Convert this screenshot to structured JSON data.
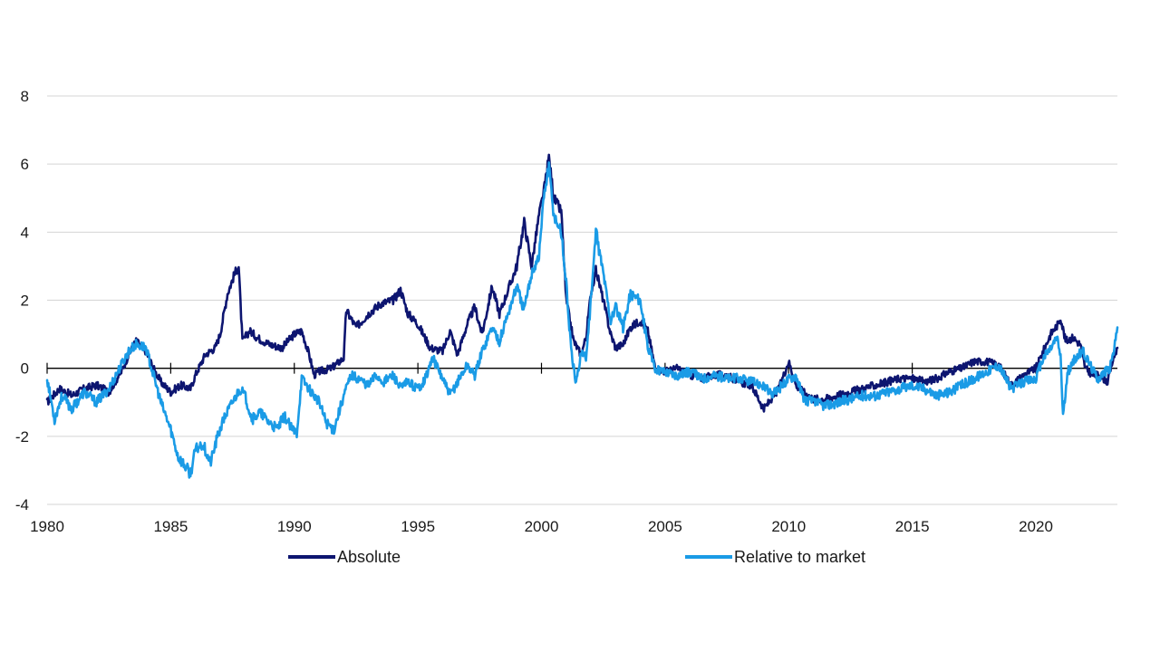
{
  "chart_data": {
    "type": "line",
    "title": "",
    "xlabel": "",
    "ylabel": "",
    "xlim": [
      1980,
      2023.3
    ],
    "ylim": [
      -4,
      8
    ],
    "x_ticks": [
      1980,
      1985,
      1990,
      1995,
      2000,
      2005,
      2010,
      2015,
      2020
    ],
    "x_tick_labels": [
      "1980",
      "1985",
      "1990",
      "1995",
      "2000",
      "2005",
      "2010",
      "2015",
      "2020"
    ],
    "y_ticks": [
      -4,
      -2,
      0,
      2,
      4,
      6,
      8
    ],
    "y_tick_labels": [
      "-4",
      "-2",
      "0",
      "2",
      "4",
      "6",
      "8"
    ],
    "grid": "horizontal",
    "legend": "bottom",
    "series": [
      {
        "name": "Absolute",
        "color": "#0d1570",
        "x": [
          1980.0,
          1980.5,
          1981.0,
          1981.5,
          1982.0,
          1982.5,
          1983.0,
          1983.3,
          1983.6,
          1984.0,
          1984.3,
          1984.6,
          1985.0,
          1985.4,
          1985.8,
          1986.0,
          1986.4,
          1986.8,
          1987.0,
          1987.3,
          1987.6,
          1987.75,
          1987.9,
          1988.2,
          1988.5,
          1989.0,
          1989.5,
          1990.0,
          1990.3,
          1990.6,
          1990.8,
          1991.0,
          1991.5,
          1992.0,
          1992.1,
          1992.5,
          1993.0,
          1993.5,
          1994.0,
          1994.3,
          1994.6,
          1995.0,
          1995.5,
          1996.0,
          1996.3,
          1996.6,
          1997.0,
          1997.3,
          1997.6,
          1998.0,
          1998.3,
          1998.6,
          1999.0,
          1999.3,
          1999.6,
          1999.9,
          2000.1,
          2000.3,
          2000.5,
          2000.8,
          2001.0,
          2001.3,
          2001.6,
          2001.8,
          2002.0,
          2002.2,
          2002.5,
          2002.8,
          2003.0,
          2003.3,
          2003.6,
          2004.0,
          2004.3,
          2004.6,
          2005.0,
          2005.5,
          2006.0,
          2006.5,
          2007.0,
          2007.5,
          2008.0,
          2008.5,
          2009.0,
          2009.3,
          2009.6,
          2010.0,
          2010.3,
          2010.6,
          2011.0,
          2011.5,
          2012.0,
          2012.5,
          2013.0,
          2013.5,
          2014.0,
          2014.5,
          2015.0,
          2015.5,
          2016.0,
          2016.5,
          2017.0,
          2017.5,
          2018.0,
          2018.5,
          2019.0,
          2019.5,
          2020.0,
          2020.3,
          2020.6,
          2020.9,
          2021.0,
          2021.2,
          2021.5,
          2021.8,
          2022.0,
          2022.3,
          2022.6,
          2022.9,
          2023.1,
          2023.3
        ],
        "y": [
          -1.0,
          -0.6,
          -0.8,
          -0.6,
          -0.5,
          -0.7,
          -0.1,
          0.4,
          0.8,
          0.5,
          0.0,
          -0.4,
          -0.7,
          -0.5,
          -0.6,
          -0.2,
          0.4,
          0.6,
          1.0,
          2.2,
          2.8,
          3.0,
          0.8,
          1.1,
          0.9,
          0.7,
          0.6,
          1.0,
          1.1,
          0.4,
          -0.2,
          -0.1,
          0.0,
          0.3,
          1.7,
          1.2,
          1.6,
          1.9,
          2.0,
          2.3,
          1.6,
          1.3,
          0.6,
          0.5,
          1.1,
          0.4,
          1.3,
          1.8,
          1.0,
          2.4,
          1.6,
          2.2,
          3.0,
          4.3,
          3.0,
          4.5,
          5.2,
          6.2,
          5.0,
          4.6,
          2.0,
          0.8,
          0.4,
          0.9,
          2.2,
          2.9,
          2.0,
          1.0,
          0.6,
          0.7,
          1.2,
          1.4,
          1.1,
          0.0,
          -0.1,
          0.0,
          -0.2,
          -0.3,
          -0.2,
          -0.2,
          -0.4,
          -0.5,
          -1.2,
          -0.9,
          -0.6,
          0.2,
          -0.5,
          -0.7,
          -0.9,
          -0.9,
          -0.8,
          -0.7,
          -0.6,
          -0.5,
          -0.4,
          -0.3,
          -0.3,
          -0.4,
          -0.3,
          -0.1,
          0.0,
          0.2,
          0.2,
          0.1,
          -0.5,
          -0.2,
          0.0,
          0.5,
          1.0,
          1.3,
          1.5,
          0.8,
          0.9,
          0.7,
          0.0,
          -0.2,
          -0.2,
          -0.4,
          0.2,
          0.6
        ]
      },
      {
        "name": "Relative to market",
        "color": "#1a9be6",
        "x": [
          1980.0,
          1980.3,
          1980.6,
          1981.0,
          1981.5,
          1982.0,
          1982.5,
          1983.0,
          1983.3,
          1983.6,
          1984.0,
          1984.3,
          1984.6,
          1985.0,
          1985.3,
          1985.5,
          1985.8,
          1986.0,
          1986.3,
          1986.6,
          1986.9,
          1987.2,
          1987.5,
          1987.8,
          1988.0,
          1988.3,
          1988.6,
          1989.0,
          1989.3,
          1989.6,
          1989.9,
          1990.1,
          1990.3,
          1990.6,
          1991.0,
          1991.3,
          1991.6,
          1992.0,
          1992.3,
          1992.6,
          1993.0,
          1993.3,
          1993.6,
          1994.0,
          1994.3,
          1994.6,
          1995.0,
          1995.3,
          1995.6,
          1996.0,
          1996.3,
          1996.6,
          1997.0,
          1997.3,
          1997.6,
          1998.0,
          1998.3,
          1998.6,
          1999.0,
          1999.3,
          1999.6,
          1999.9,
          2000.1,
          2000.3,
          2000.5,
          2000.8,
          2001.0,
          2001.2,
          2001.4,
          2001.6,
          2001.8,
          2002.0,
          2002.2,
          2002.5,
          2002.8,
          2003.0,
          2003.3,
          2003.6,
          2004.0,
          2004.3,
          2004.6,
          2005.0,
          2005.5,
          2006.0,
          2006.5,
          2007.0,
          2007.5,
          2008.0,
          2008.5,
          2009.0,
          2009.3,
          2009.6,
          2010.0,
          2010.3,
          2010.6,
          2011.0,
          2011.5,
          2012.0,
          2012.5,
          2013.0,
          2013.5,
          2014.0,
          2014.5,
          2015.0,
          2015.5,
          2016.0,
          2016.5,
          2017.0,
          2017.5,
          2018.0,
          2018.5,
          2019.0,
          2019.5,
          2020.0,
          2020.3,
          2020.6,
          2020.85,
          2021.0,
          2021.1,
          2021.3,
          2021.6,
          2021.9,
          2022.2,
          2022.5,
          2022.8,
          2023.0,
          2023.2,
          2023.3
        ],
        "y": [
          -0.3,
          -1.5,
          -0.8,
          -1.2,
          -0.7,
          -1.0,
          -0.6,
          0.1,
          0.5,
          0.7,
          0.6,
          -0.2,
          -1.0,
          -1.8,
          -2.6,
          -2.8,
          -3.1,
          -2.4,
          -2.2,
          -2.8,
          -2.0,
          -1.4,
          -1.0,
          -0.6,
          -0.8,
          -1.5,
          -1.3,
          -1.6,
          -1.8,
          -1.4,
          -1.8,
          -1.9,
          -0.3,
          -0.6,
          -1.0,
          -1.6,
          -1.8,
          -0.8,
          -0.2,
          -0.3,
          -0.5,
          -0.2,
          -0.4,
          -0.2,
          -0.6,
          -0.4,
          -0.6,
          -0.3,
          0.3,
          -0.3,
          -0.8,
          -0.4,
          0.1,
          -0.2,
          0.5,
          1.2,
          0.8,
          1.5,
          2.4,
          1.7,
          2.8,
          3.3,
          5.1,
          5.9,
          4.5,
          4.0,
          2.5,
          0.5,
          -0.5,
          0.5,
          0.3,
          2.0,
          4.0,
          2.8,
          1.4,
          1.8,
          1.2,
          2.2,
          2.0,
          0.6,
          0.0,
          -0.1,
          -0.2,
          -0.1,
          -0.3,
          -0.2,
          -0.3,
          -0.3,
          -0.4,
          -0.5,
          -0.8,
          -0.6,
          -0.3,
          -0.2,
          -0.9,
          -1.0,
          -1.1,
          -1.0,
          -0.9,
          -0.8,
          -0.8,
          -0.7,
          -0.6,
          -0.5,
          -0.6,
          -0.8,
          -0.7,
          -0.5,
          -0.3,
          -0.1,
          0.1,
          -0.6,
          -0.4,
          -0.3,
          0.3,
          0.6,
          0.9,
          0.4,
          -1.4,
          -0.1,
          0.3,
          0.5,
          0.1,
          -0.3,
          -0.1,
          0.0,
          0.7,
          1.2
        ]
      }
    ]
  }
}
